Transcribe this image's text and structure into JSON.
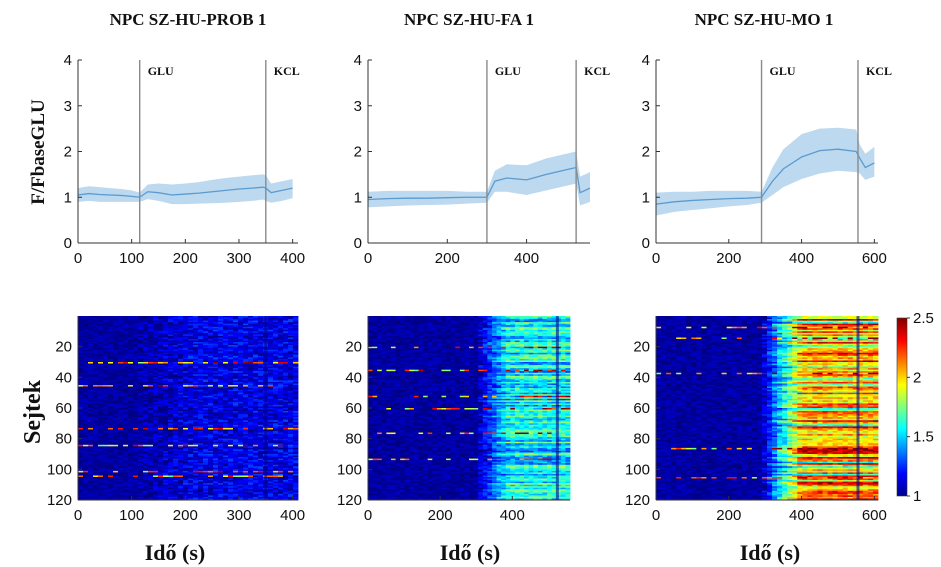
{
  "chart_data": [
    {
      "type": "line",
      "title": "NPC SZ-HU-PROB 1",
      "ylabel": "F/FbaseGLU",
      "xlabel": "",
      "xlim": [
        0,
        410
      ],
      "ylim": [
        0,
        4
      ],
      "xticks": [
        0,
        100,
        200,
        300,
        400
      ],
      "yticks": [
        0,
        1,
        2,
        3,
        4
      ],
      "markers": [
        {
          "label": "GLU",
          "x": 115
        },
        {
          "label": "KCL",
          "x": 350
        }
      ],
      "x": [
        0,
        20,
        40,
        60,
        80,
        100,
        115,
        130,
        150,
        175,
        200,
        225,
        250,
        275,
        300,
        325,
        345,
        350,
        360,
        380,
        400
      ],
      "mean": [
        1.05,
        1.08,
        1.06,
        1.05,
        1.04,
        1.02,
        1.0,
        1.12,
        1.1,
        1.05,
        1.07,
        1.09,
        1.12,
        1.15,
        1.18,
        1.2,
        1.22,
        1.2,
        1.1,
        1.15,
        1.2
      ],
      "upper": [
        1.2,
        1.24,
        1.22,
        1.2,
        1.18,
        1.15,
        1.1,
        1.28,
        1.3,
        1.28,
        1.3,
        1.33,
        1.38,
        1.42,
        1.45,
        1.48,
        1.5,
        1.48,
        1.3,
        1.35,
        1.4
      ],
      "lower": [
        0.9,
        0.92,
        0.9,
        0.9,
        0.9,
        0.9,
        0.9,
        0.96,
        0.92,
        0.85,
        0.85,
        0.86,
        0.87,
        0.88,
        0.9,
        0.92,
        0.95,
        0.92,
        0.88,
        0.92,
        0.98
      ]
    },
    {
      "type": "line",
      "title": "NPC SZ-HU-FA 1",
      "ylabel": "",
      "xlabel": "",
      "xlim": [
        0,
        560
      ],
      "ylim": [
        0,
        4
      ],
      "xticks": [
        0,
        200,
        400
      ],
      "yticks": [
        0,
        1,
        2,
        3,
        4
      ],
      "markers": [
        {
          "label": "GLU",
          "x": 300
        },
        {
          "label": "KCL",
          "x": 525
        }
      ],
      "x": [
        0,
        50,
        100,
        150,
        200,
        250,
        300,
        320,
        350,
        400,
        450,
        500,
        525,
        535,
        560
      ],
      "mean": [
        0.95,
        0.97,
        0.98,
        0.98,
        0.99,
        1.0,
        1.0,
        1.35,
        1.42,
        1.38,
        1.5,
        1.6,
        1.65,
        1.1,
        1.2
      ],
      "upper": [
        1.12,
        1.14,
        1.14,
        1.14,
        1.14,
        1.12,
        1.12,
        1.58,
        1.72,
        1.7,
        1.85,
        1.95,
        2.0,
        1.45,
        1.55
      ],
      "lower": [
        0.78,
        0.8,
        0.82,
        0.83,
        0.84,
        0.86,
        0.88,
        1.12,
        1.12,
        1.05,
        1.15,
        1.25,
        1.3,
        0.82,
        0.9
      ]
    },
    {
      "type": "line",
      "title": "NPC SZ-HU-MO 1",
      "ylabel": "",
      "xlabel": "",
      "xlim": [
        0,
        610
      ],
      "ylim": [
        0,
        4
      ],
      "xticks": [
        0,
        200,
        400,
        600
      ],
      "yticks": [
        0,
        1,
        2,
        3,
        4
      ],
      "markers": [
        {
          "label": "GLU",
          "x": 290
        },
        {
          "label": "KCL",
          "x": 555
        }
      ],
      "x": [
        0,
        50,
        100,
        150,
        200,
        250,
        290,
        320,
        350,
        400,
        450,
        500,
        550,
        560,
        575,
        600
      ],
      "mean": [
        0.85,
        0.9,
        0.93,
        0.95,
        0.97,
        0.98,
        1.0,
        1.35,
        1.62,
        1.88,
        2.02,
        2.05,
        2.0,
        1.85,
        1.65,
        1.75
      ],
      "upper": [
        1.1,
        1.12,
        1.12,
        1.14,
        1.14,
        1.14,
        1.12,
        1.65,
        2.05,
        2.38,
        2.5,
        2.52,
        2.48,
        2.15,
        1.95,
        2.1
      ],
      "lower": [
        0.6,
        0.68,
        0.72,
        0.76,
        0.8,
        0.83,
        0.88,
        1.05,
        1.22,
        1.4,
        1.52,
        1.58,
        1.55,
        1.52,
        1.38,
        1.45
      ]
    },
    {
      "type": "heatmap",
      "title": "",
      "ylabel": "Sejtek",
      "xlabel": "Idő (s)",
      "xlim": [
        0,
        410
      ],
      "ylim": [
        120,
        0
      ],
      "xticks": [
        0,
        100,
        200,
        300,
        400
      ],
      "yticks": [
        20,
        40,
        60,
        80,
        100,
        120
      ],
      "rows": 120,
      "value_range": [
        1,
        2.5
      ],
      "onset_x": 115,
      "kcl_x": 350,
      "baseline_level": 1.05,
      "response_level": 1.15,
      "hot_cells": [
        30,
        45,
        73,
        84,
        101,
        104
      ]
    },
    {
      "type": "heatmap",
      "title": "",
      "ylabel": "",
      "xlabel": "Idő (s)",
      "xlim": [
        0,
        560
      ],
      "ylim": [
        120,
        0
      ],
      "xticks": [
        0,
        200,
        400
      ],
      "yticks": [
        20,
        40,
        60,
        80,
        100,
        120
      ],
      "rows": 120,
      "value_range": [
        1,
        2.5
      ],
      "onset_x": 300,
      "kcl_x": 525,
      "baseline_level": 1.05,
      "response_level": 1.55,
      "hot_cells": [
        20,
        35,
        52,
        60,
        76,
        93
      ]
    },
    {
      "type": "heatmap",
      "title": "",
      "ylabel": "",
      "xlabel": "Idő (s)",
      "xlim": [
        0,
        610
      ],
      "ylim": [
        120,
        0
      ],
      "xticks": [
        0,
        200,
        400,
        600
      ],
      "yticks": [
        20,
        40,
        60,
        80,
        100,
        120
      ],
      "rows": 120,
      "value_range": [
        1,
        2.5
      ],
      "onset_x": 290,
      "kcl_x": 555,
      "baseline_level": 1.05,
      "response_level": 2.0,
      "hot_cells": [
        7,
        14,
        37,
        86,
        105
      ],
      "colorbar": {
        "ticks": [
          1,
          1.5,
          2,
          2.5
        ]
      }
    }
  ],
  "colors": {
    "band": "#bcd9ef",
    "mean_line": "#5b9bd0",
    "marker_line": "#8a8a8a",
    "axis": "#333333"
  }
}
